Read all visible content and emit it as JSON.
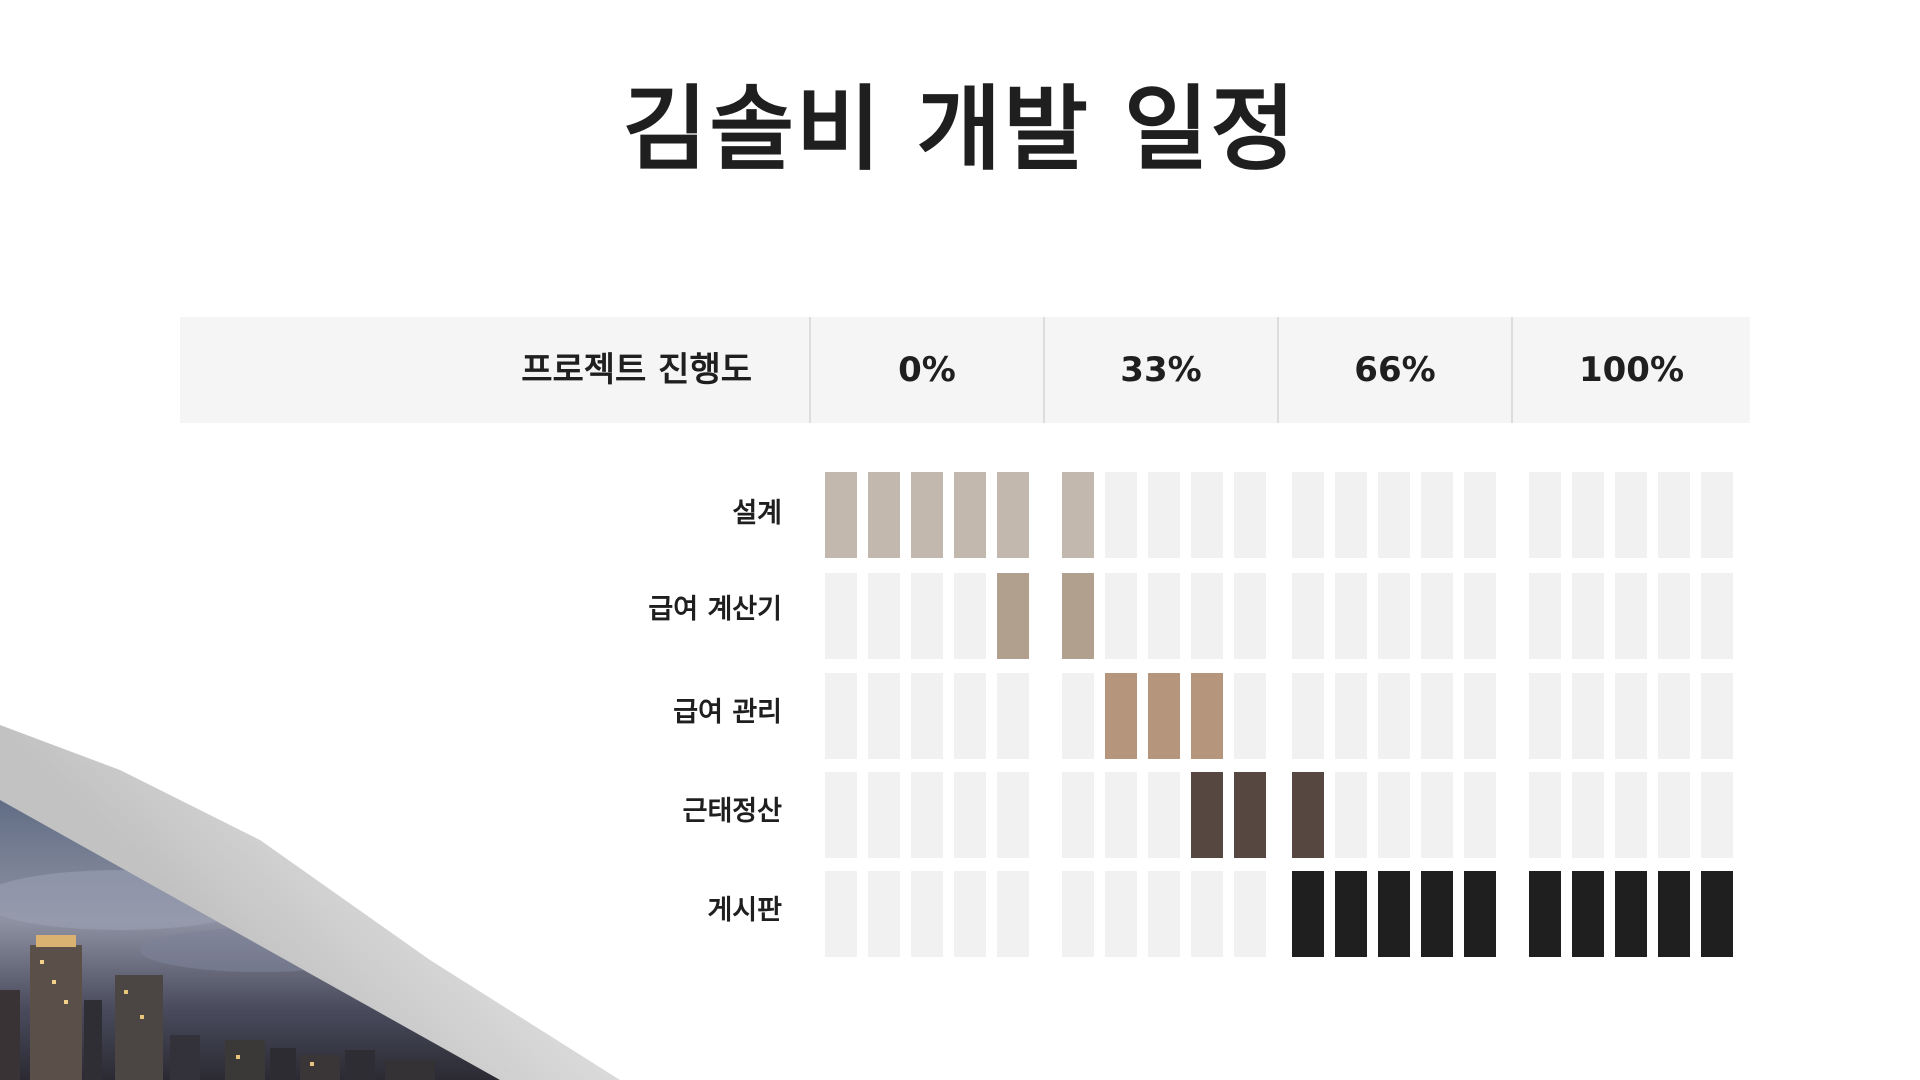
{
  "title": "김솔비 개발 일정",
  "header": {
    "label": "프로젝트 진행도",
    "percents": [
      "0%",
      "33%",
      "66%",
      "100%"
    ]
  },
  "colors": {
    "empty": "#f1f1f1",
    "header_bg": "#f5f5f5"
  },
  "rows": [
    {
      "label": "설계",
      "color": "#c3b8ad",
      "filled": [
        0,
        1,
        2,
        3,
        4,
        5
      ]
    },
    {
      "label": "급여 계산기",
      "color": "#b2a08f",
      "filled": [
        4,
        5
      ]
    },
    {
      "label": "급여 관리",
      "color": "#b5967c",
      "filled": [
        6,
        7,
        8
      ]
    },
    {
      "label": "근태정산",
      "color": "#564840",
      "filled": [
        8,
        9,
        10
      ]
    },
    {
      "label": "게시판",
      "color": "#1f1f1f",
      "filled": [
        10,
        11,
        12,
        13,
        14,
        15,
        16,
        17,
        18,
        19
      ]
    }
  ]
}
